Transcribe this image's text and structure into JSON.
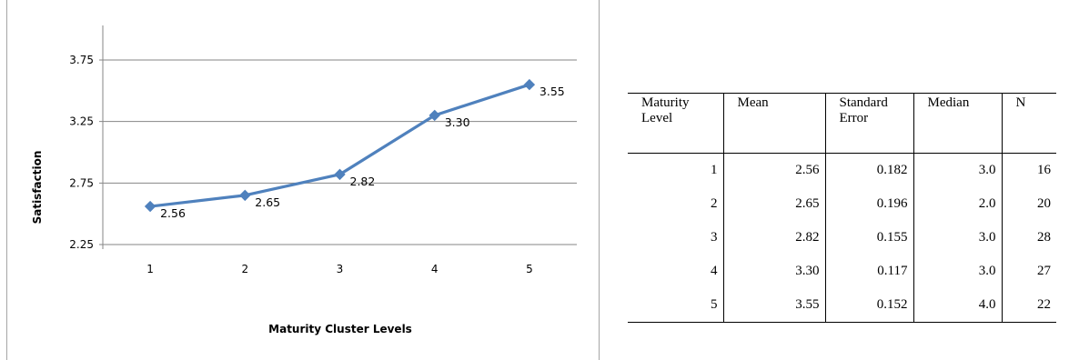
{
  "chart_data": {
    "type": "line",
    "xlabel": "Maturity Cluster Levels",
    "ylabel": "Satisfaction",
    "categories": [
      "1",
      "2",
      "3",
      "4",
      "5"
    ],
    "values": [
      2.56,
      2.65,
      2.82,
      3.3,
      3.55
    ],
    "data_labels": [
      "2.56",
      "2.65",
      "2.82",
      "3.30",
      "3.55"
    ],
    "y_ticks": [
      "2.25",
      "2.75",
      "3.25",
      "3.75"
    ],
    "ylim": [
      2.25,
      3.75
    ],
    "grid": true,
    "legend": "none",
    "line_color": "#4f81bd"
  },
  "table": {
    "headers": [
      "Maturity\nLevel",
      "Mean",
      "Standard\nError",
      "Median",
      "N"
    ],
    "rows": [
      [
        "1",
        "2.56",
        "0.182",
        "3.0",
        "16"
      ],
      [
        "2",
        "2.65",
        "0.196",
        "2.0",
        "20"
      ],
      [
        "3",
        "2.82",
        "0.155",
        "3.0",
        "28"
      ],
      [
        "4",
        "3.30",
        "0.117",
        "3.0",
        "27"
      ],
      [
        "5",
        "3.55",
        "0.152",
        "4.0",
        "22"
      ]
    ]
  }
}
